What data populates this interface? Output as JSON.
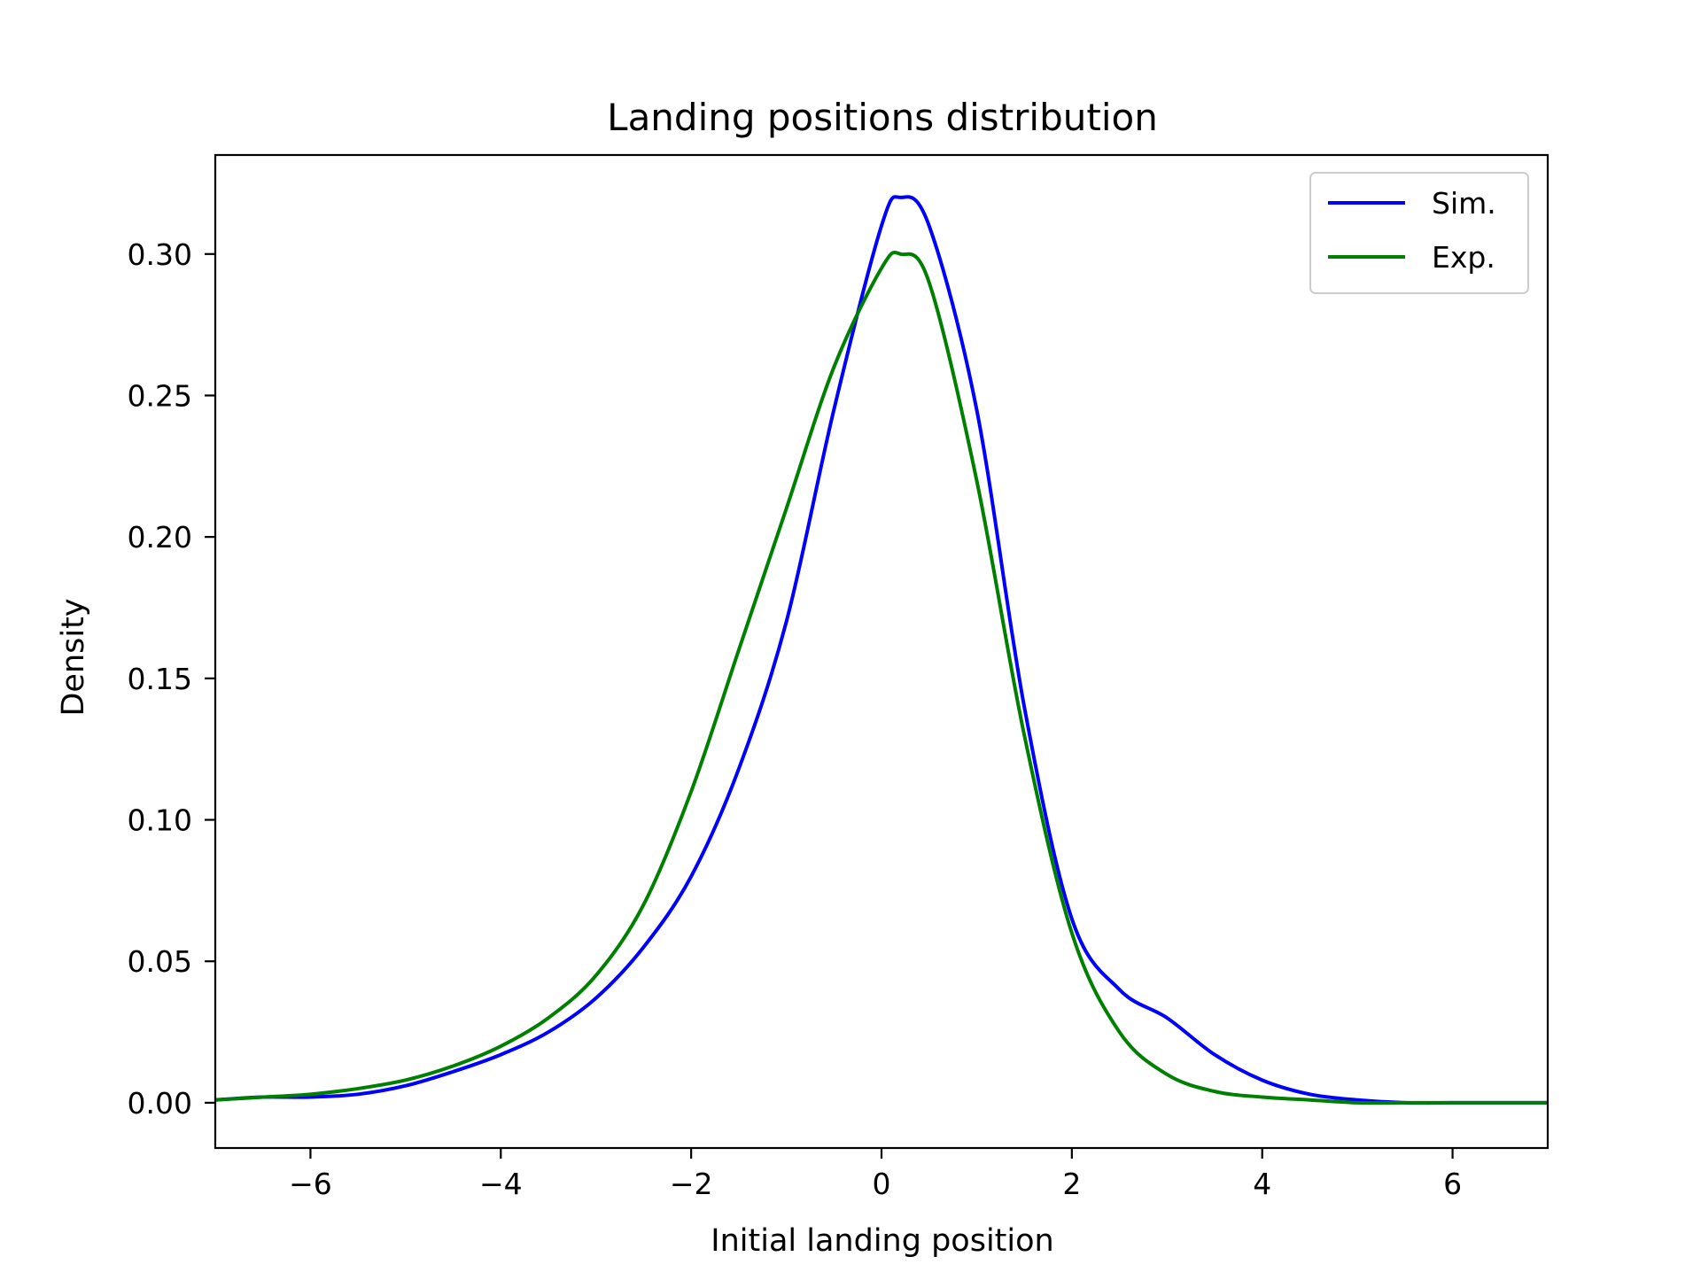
{
  "chart_data": {
    "type": "line",
    "title": "Landing positions distribution",
    "xlabel": "Initial landing position",
    "ylabel": "Density",
    "xlim": [
      -7,
      7
    ],
    "ylim": [
      -0.016,
      0.335
    ],
    "xticks": [
      -6,
      -4,
      -2,
      0,
      2,
      4,
      6
    ],
    "xtick_labels": [
      "−6",
      "−4",
      "−2",
      "0",
      "2",
      "4",
      "6"
    ],
    "yticks": [
      0.0,
      0.05,
      0.1,
      0.15,
      0.2,
      0.25,
      0.3
    ],
    "ytick_labels": [
      "0.00",
      "0.05",
      "0.10",
      "0.15",
      "0.20",
      "0.25",
      "0.30"
    ],
    "grid": false,
    "legend_position": "top-right",
    "series": [
      {
        "name": "Sim.",
        "color": "#0000ff",
        "x": [
          -7,
          -6.5,
          -6,
          -5.5,
          -5,
          -4.5,
          -4,
          -3.5,
          -3,
          -2.5,
          -2,
          -1.5,
          -1,
          -0.5,
          0,
          0.2,
          0.5,
          1,
          1.5,
          2,
          2.5,
          3,
          3.5,
          4,
          4.5,
          5,
          5.5,
          6,
          6.5,
          7
        ],
        "y": [
          0.001,
          0.002,
          0.002,
          0.003,
          0.006,
          0.011,
          0.017,
          0.025,
          0.037,
          0.055,
          0.08,
          0.118,
          0.17,
          0.245,
          0.31,
          0.32,
          0.31,
          0.245,
          0.14,
          0.065,
          0.04,
          0.03,
          0.017,
          0.008,
          0.003,
          0.001,
          0.0,
          0.0,
          0.0,
          0.0
        ]
      },
      {
        "name": "Exp.",
        "color": "#008000",
        "x": [
          -7,
          -6.5,
          -6,
          -5.5,
          -5,
          -4.5,
          -4,
          -3.5,
          -3,
          -2.5,
          -2,
          -1.5,
          -1,
          -0.5,
          0,
          0.2,
          0.5,
          1,
          1.5,
          2,
          2.5,
          3,
          3.5,
          4,
          4.5,
          5,
          5.5,
          6,
          6.5,
          7
        ],
        "y": [
          0.001,
          0.002,
          0.003,
          0.005,
          0.008,
          0.013,
          0.02,
          0.03,
          0.045,
          0.07,
          0.11,
          0.16,
          0.21,
          0.26,
          0.295,
          0.3,
          0.29,
          0.22,
          0.13,
          0.06,
          0.025,
          0.01,
          0.004,
          0.002,
          0.001,
          0.0,
          0.0,
          0.0,
          0.0,
          0.0
        ]
      }
    ]
  }
}
